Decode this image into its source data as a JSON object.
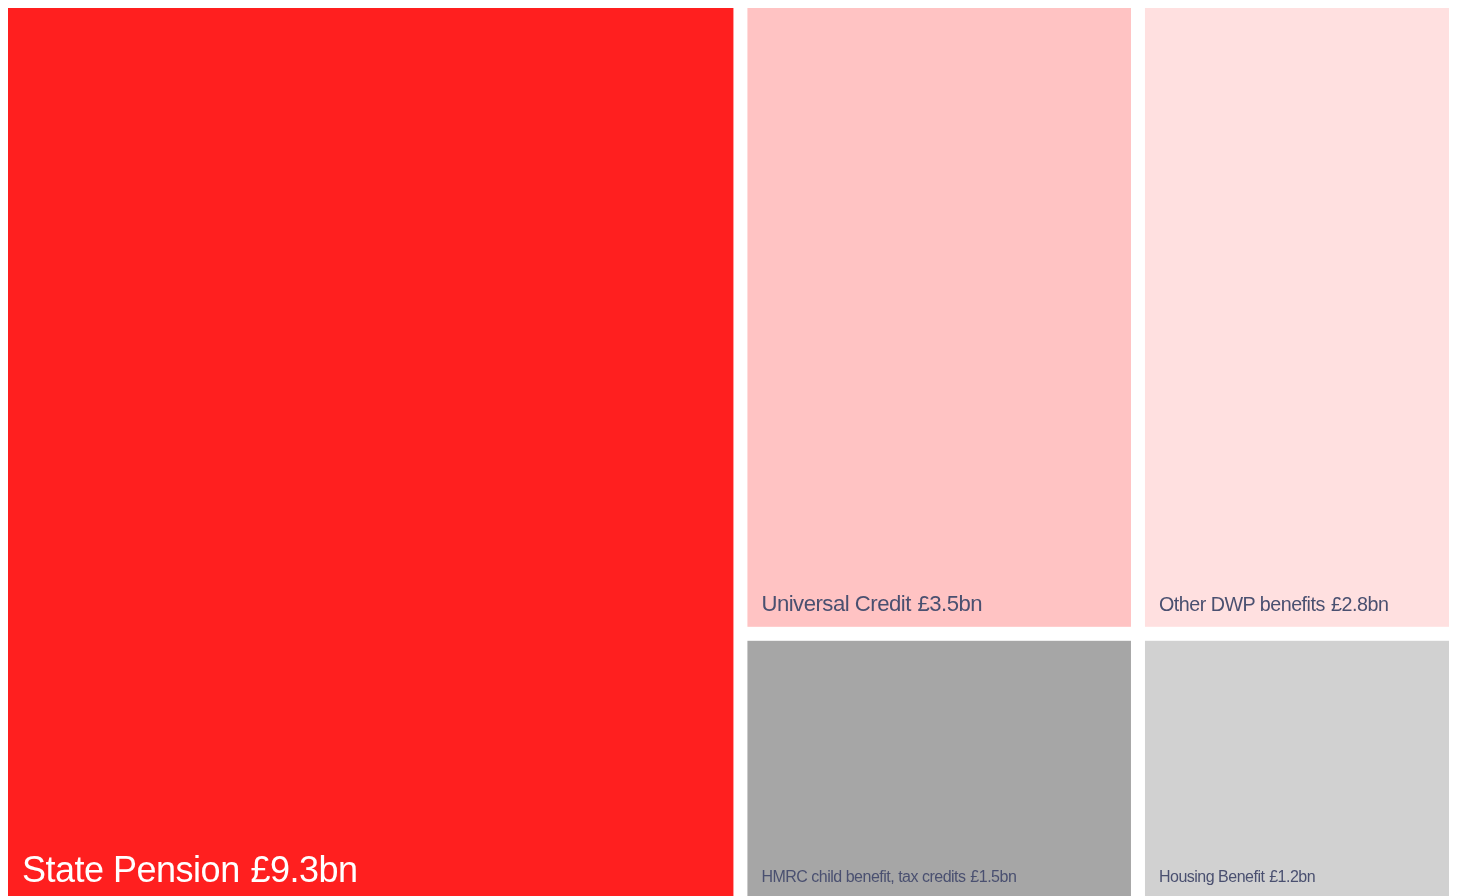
{
  "chart_data": {
    "type": "other",
    "categories": [
      "State Pension",
      "Universal Credit",
      "Other DWP benefits",
      "HMRC child benefit, tax credits",
      "Housing Benefit"
    ],
    "values": [
      9.3,
      3.5,
      2.8,
      1.5,
      1.2
    ],
    "value_labels": [
      "£9.3bn",
      "£3.5bn",
      "£2.8bn",
      "£1.5bn",
      "£1.2bn"
    ],
    "colors": [
      "#ff1f1f",
      "#ffc3c3",
      "#ffe0e0",
      "#a6a6a6",
      "#d1d1d1"
    ]
  }
}
